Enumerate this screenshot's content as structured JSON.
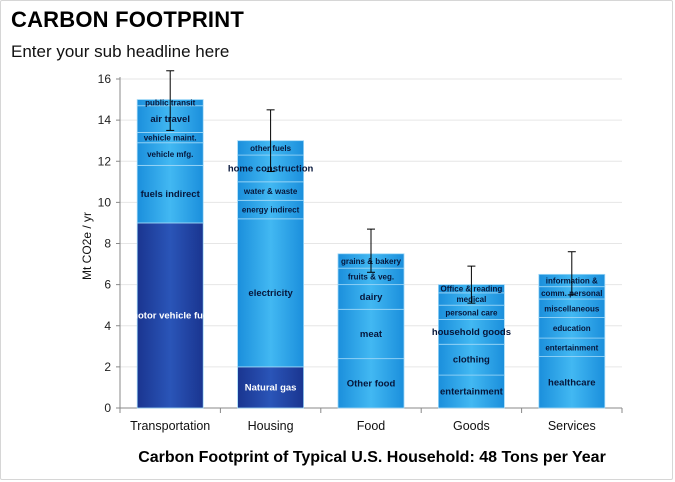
{
  "header": {
    "title": "CARBON FOOTPRINT",
    "subtitle": "Enter your sub headline here"
  },
  "chart_data": {
    "type": "bar",
    "stacked": true,
    "title": "CARBON FOOTPRINT",
    "subtitle": "Enter your sub headline here",
    "xlabel": "Carbon Footprint of Typical U.S. Household: 48 Tons per Year",
    "ylabel": "Mt CO2e / yr",
    "ylim": [
      0,
      16
    ],
    "yticks": [
      0,
      2,
      4,
      6,
      8,
      10,
      12,
      14,
      16
    ],
    "grid": true,
    "legend": "none",
    "categories": [
      "Transportation",
      "Housing",
      "Food",
      "Goods",
      "Services"
    ],
    "colors": {
      "segment_light": "#2fa9ea",
      "segment_mid": "#1a84d4",
      "segment_dark": "#1e3e9a",
      "error_bar": "#000000"
    },
    "bars": [
      {
        "category": "Transportation",
        "total": 15.0,
        "error": [
          13.5,
          16.4
        ],
        "segments": [
          {
            "label": "motor vehicle fuel",
            "value": 9.0,
            "shade": "dark"
          },
          {
            "label": "fuels indirect",
            "value": 2.8,
            "shade": "light"
          },
          {
            "label": "vehicle mfg.",
            "value": 1.1,
            "shade": "light"
          },
          {
            "label": "vehicle maint.",
            "value": 0.5,
            "shade": "light"
          },
          {
            "label": "air travel",
            "value": 1.3,
            "shade": "light"
          },
          {
            "label": "public transit",
            "value": 0.3,
            "shade": "light"
          }
        ]
      },
      {
        "category": "Housing",
        "total": 13.0,
        "error": [
          11.5,
          14.5
        ],
        "segments": [
          {
            "label": "Natural gas",
            "value": 2.0,
            "shade": "dark"
          },
          {
            "label": "electricity",
            "value": 7.2,
            "shade": "light"
          },
          {
            "label": "energy indirect",
            "value": 0.9,
            "shade": "light"
          },
          {
            "label": "water & waste",
            "value": 0.9,
            "shade": "light"
          },
          {
            "label": "home construction",
            "value": 1.3,
            "shade": "light"
          },
          {
            "label": "other fuels",
            "value": 0.7,
            "shade": "light"
          }
        ]
      },
      {
        "category": "Food",
        "total": 7.5,
        "error": [
          6.6,
          8.7
        ],
        "segments": [
          {
            "label": "Other food",
            "value": 2.4,
            "shade": "light"
          },
          {
            "label": "meat",
            "value": 2.4,
            "shade": "light"
          },
          {
            "label": "dairy",
            "value": 1.2,
            "shade": "light"
          },
          {
            "label": "fruits & veg.",
            "value": 0.8,
            "shade": "light"
          },
          {
            "label": "grains & bakery",
            "value": 0.7,
            "shade": "light"
          }
        ]
      },
      {
        "category": "Goods",
        "total": 6.0,
        "error": [
          5.1,
          6.9
        ],
        "segments": [
          {
            "label": "entertainment",
            "value": 1.6,
            "shade": "light"
          },
          {
            "label": "clothing",
            "value": 1.5,
            "shade": "light"
          },
          {
            "label": "household goods",
            "value": 1.2,
            "shade": "light"
          },
          {
            "label": "personal care",
            "value": 0.7,
            "shade": "light"
          },
          {
            "label": "medical",
            "value": 0.6,
            "shade": "light"
          },
          {
            "label": "Office & reading",
            "value": 0.4,
            "shade": "light"
          }
        ]
      },
      {
        "category": "Services",
        "total": 6.5,
        "error": [
          5.5,
          7.6
        ],
        "segments": [
          {
            "label": "healthcare",
            "value": 2.5,
            "shade": "light"
          },
          {
            "label": "entertainment",
            "value": 0.9,
            "shade": "light"
          },
          {
            "label": "education",
            "value": 1.0,
            "shade": "light"
          },
          {
            "label": "miscellaneous",
            "value": 0.9,
            "shade": "light"
          },
          {
            "label": "comm. personal",
            "value": 0.6,
            "shade": "light"
          },
          {
            "label": "information &",
            "value": 0.6,
            "shade": "light"
          }
        ]
      }
    ]
  }
}
